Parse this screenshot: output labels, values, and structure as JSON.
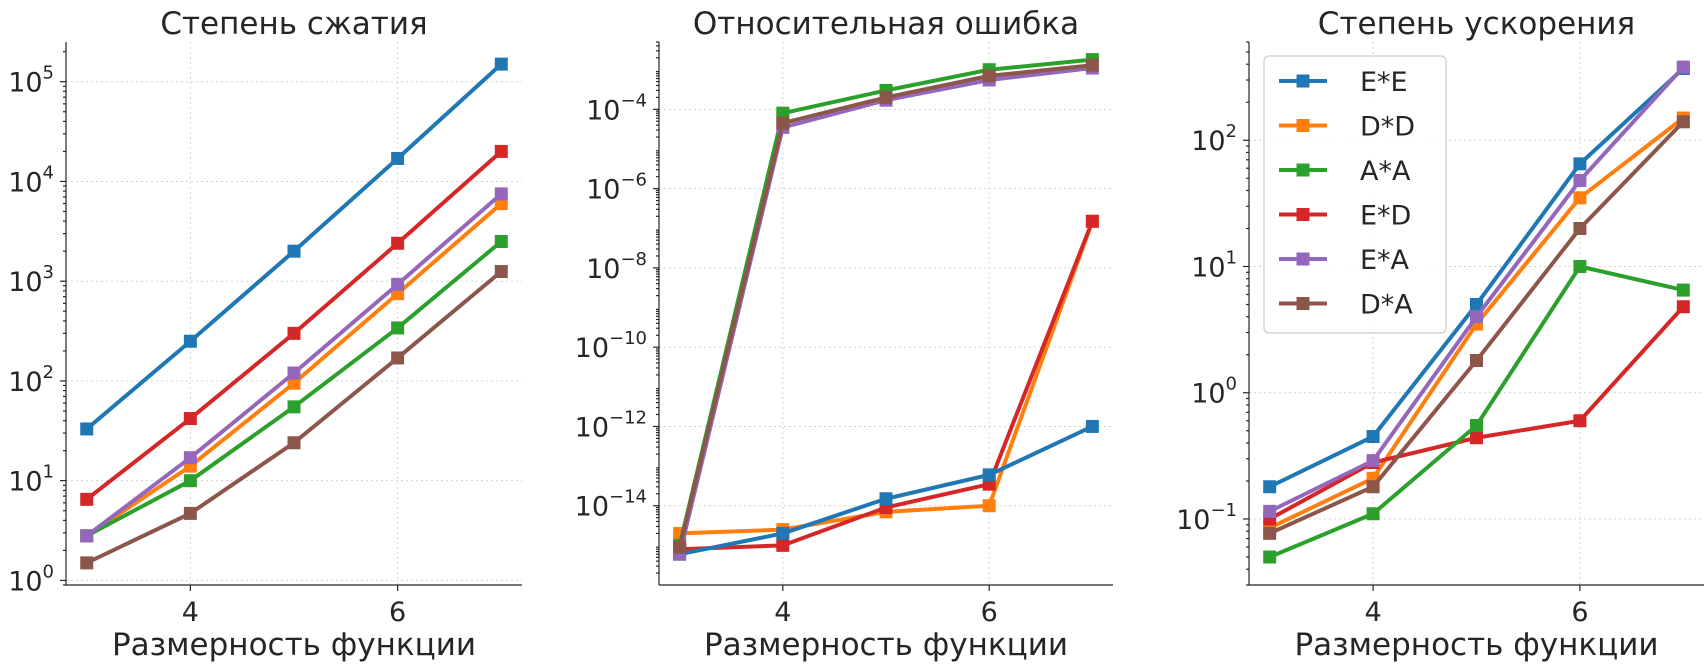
{
  "chart_data": [
    {
      "type": "line",
      "title": "Степень сжатия",
      "xlabel": "Размерность функции",
      "ylabel": "",
      "yscale": "log",
      "x": [
        3,
        4,
        5,
        6,
        7
      ],
      "xticks": [
        4,
        6
      ],
      "xlim": [
        2.8,
        7.2
      ],
      "yticks_exp": [
        0,
        1,
        2,
        3,
        4,
        5
      ],
      "ylim": [
        0.9,
        250000
      ],
      "grid": true,
      "series": [
        {
          "name": "E*E",
          "values": [
            33,
            250,
            2000,
            17000,
            150000
          ]
        },
        {
          "name": "D*D",
          "values": [
            2.8,
            14,
            95,
            750,
            6000
          ]
        },
        {
          "name": "A*A",
          "values": [
            2.8,
            10,
            55,
            340,
            2500
          ]
        },
        {
          "name": "E*D",
          "values": [
            6.5,
            42,
            300,
            2400,
            20000
          ]
        },
        {
          "name": "E*A",
          "values": [
            2.8,
            17,
            120,
            930,
            7500
          ]
        },
        {
          "name": "D*A",
          "values": [
            1.5,
            4.7,
            24,
            170,
            1250
          ]
        }
      ]
    },
    {
      "type": "line",
      "title": "Относительная ошибка",
      "xlabel": "Размерность функции",
      "ylabel": "",
      "yscale": "log",
      "x": [
        3,
        4,
        5,
        6,
        7
      ],
      "xticks": [
        4,
        6
      ],
      "xlim": [
        2.8,
        7.2
      ],
      "yticks_exp": [
        -14,
        -12,
        -10,
        -8,
        -6,
        -4
      ],
      "ylim": [
        1e-16,
        0.005
      ],
      "grid": true,
      "series": [
        {
          "name": "E*E",
          "values": [
            6e-16,
            2e-15,
            1.5e-14,
            6e-14,
            1e-12
          ]
        },
        {
          "name": "D*D",
          "values": [
            2e-15,
            2.5e-15,
            7e-15,
            1e-14,
            1.5e-07
          ]
        },
        {
          "name": "A*A",
          "values": [
            1e-15,
            8e-05,
            0.0003,
            0.001,
            0.0018
          ]
        },
        {
          "name": "E*D",
          "values": [
            8e-16,
            1e-15,
            9e-15,
            3.5e-14,
            1.5e-07
          ]
        },
        {
          "name": "E*A",
          "values": [
            6e-16,
            3.5e-05,
            0.00017,
            0.00055,
            0.0011
          ]
        },
        {
          "name": "D*A",
          "values": [
            9e-16,
            4.5e-05,
            0.0002,
            0.0007,
            0.0013
          ]
        }
      ]
    },
    {
      "type": "line",
      "title": "Степень ускорения",
      "xlabel": "Размерность функции",
      "ylabel": "",
      "yscale": "log",
      "x": [
        3,
        4,
        5,
        6,
        7
      ],
      "xticks": [
        4,
        6
      ],
      "xlim": [
        2.8,
        7.2
      ],
      "yticks_exp": [
        -1,
        0,
        1,
        2
      ],
      "ylim": [
        0.03,
        600
      ],
      "grid": true,
      "legend": "top-left",
      "series": [
        {
          "name": "E*E",
          "values": [
            0.18,
            0.45,
            5,
            65,
            370
          ]
        },
        {
          "name": "D*D",
          "values": [
            0.085,
            0.21,
            3.5,
            35,
            150
          ]
        },
        {
          "name": "A*A",
          "values": [
            0.05,
            0.11,
            0.55,
            10,
            6.5
          ]
        },
        {
          "name": "E*D",
          "values": [
            0.1,
            0.28,
            0.44,
            0.6,
            4.8
          ]
        },
        {
          "name": "E*A",
          "values": [
            0.115,
            0.29,
            4,
            48,
            380
          ]
        },
        {
          "name": "D*A",
          "values": [
            0.077,
            0.18,
            1.8,
            20,
            140
          ]
        }
      ]
    }
  ],
  "colors": {
    "E*E": "#1f77b4",
    "D*D": "#ff7f0e",
    "A*A": "#2ca02c",
    "E*D": "#d62728",
    "E*A": "#9467bd",
    "D*A": "#8c564b"
  },
  "draw_order": [
    "D*D",
    "E*D",
    "E*E",
    "A*A",
    "E*A",
    "D*A"
  ]
}
